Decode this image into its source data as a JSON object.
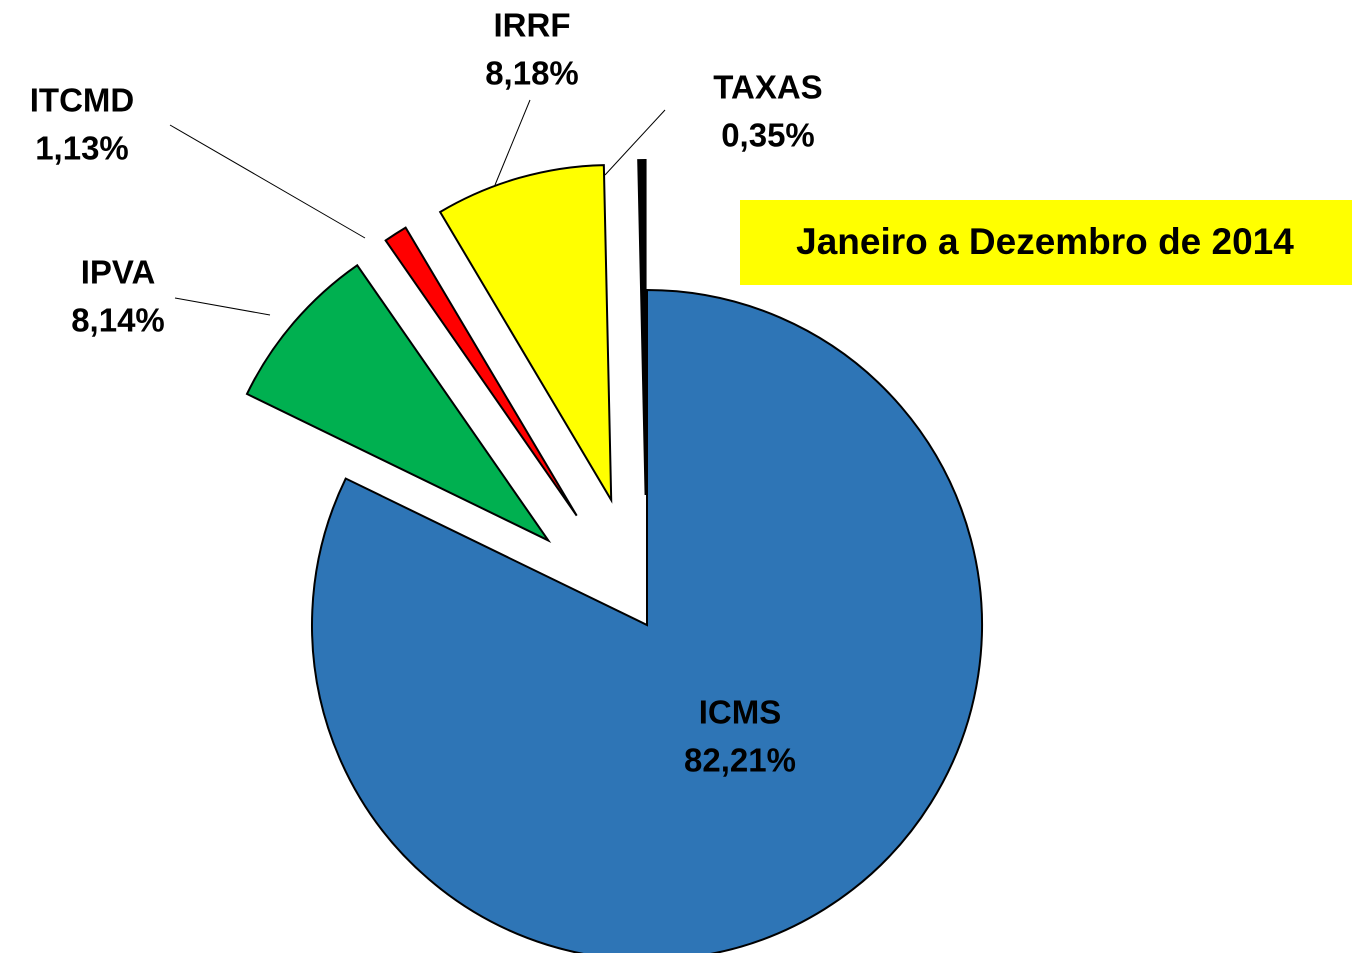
{
  "chart_data": {
    "type": "pie",
    "title": "Janeiro a Dezembro de 2014",
    "categories": [
      "ICMS",
      "IPVA",
      "ITCMD",
      "IRRF",
      "TAXAS"
    ],
    "values": [
      82.21,
      8.14,
      1.13,
      8.18,
      0.35
    ],
    "value_labels": [
      "82,21%",
      "8,14%",
      "1,13%",
      "8,18%",
      "0,35%"
    ],
    "colors": [
      "#2e75b6",
      "#00b050",
      "#ff0000",
      "#ffff00",
      "#000000"
    ]
  }
}
